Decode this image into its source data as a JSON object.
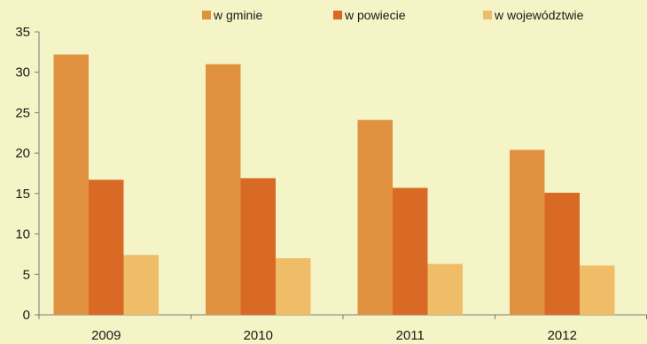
{
  "chart_data": {
    "type": "bar",
    "categories": [
      "2009",
      "2010",
      "2011",
      "2012"
    ],
    "series": [
      {
        "name": "w gminie",
        "values": [
          32.2,
          31.0,
          24.1,
          20.4
        ],
        "color": "#e09240"
      },
      {
        "name": "w powiecie",
        "values": [
          16.7,
          16.9,
          15.7,
          15.1
        ],
        "color": "#d86a26"
      },
      {
        "name": "w województwie",
        "values": [
          7.4,
          7.0,
          6.3,
          6.1
        ],
        "color": "#efbd67"
      }
    ],
    "ylim": [
      0,
      35
    ],
    "yticks": [
      0,
      5,
      10,
      15,
      20,
      25,
      30,
      35
    ],
    "grid": false,
    "legend_position": "top",
    "background": "#f4f4c6"
  }
}
